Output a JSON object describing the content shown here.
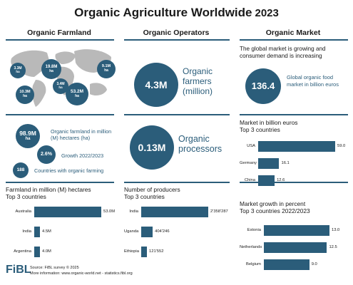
{
  "header": {
    "title": "Organic Agriculture Worldwide",
    "year": "2023"
  },
  "columns": {
    "farmland": "Organic Farmland",
    "operators": "Organic Operators",
    "market": "Organic Market"
  },
  "map": {
    "regions": [
      {
        "name": "north-america",
        "value": "19.8M",
        "unit": "ha"
      },
      {
        "name": "europe",
        "value": "9.1M",
        "unit": "ha"
      },
      {
        "name": "north-america-west",
        "value": "3.3M",
        "unit": "ha"
      },
      {
        "name": "latin-america",
        "value": "10.3M",
        "unit": "ha"
      },
      {
        "name": "africa",
        "value": "3.4M",
        "unit": "ha"
      },
      {
        "name": "oceania",
        "value": "53.2M",
        "unit": "ha"
      }
    ]
  },
  "farmland_stats": {
    "area_value": "98.9M",
    "area_unit": "ha",
    "area_label": "Organic farmland in million (M) hectares (ha)",
    "growth_value": "2.6%",
    "growth_label": "Growth 2022/2023",
    "countries_value": "188",
    "countries_label": "Countries with organic farming"
  },
  "operators": {
    "farmers_value": "4.3M",
    "farmers_label": "Organic farmers (million)",
    "processors_value": "0.13M",
    "processors_label": "Organic processors"
  },
  "market": {
    "intro": "The global market is growing and consumer demand is increasing",
    "food_value": "136.4",
    "food_label": "Global organic food market in billion euros"
  },
  "footer": {
    "logo": "FiBL",
    "source": "Source: FiBL survey © 2025",
    "more": "More information: www.organic-world.net - statistics.fibl.org"
  },
  "chart_data": [
    {
      "type": "bar",
      "title": "Farmland in million (M) hectares",
      "subtitle": "Top 3 countries",
      "categories": [
        "Australia",
        "India",
        "Argentina"
      ],
      "values": [
        53.0,
        4.5,
        4.0
      ],
      "value_labels": [
        "53.0M",
        "4.5M",
        "4.0M"
      ]
    },
    {
      "type": "bar",
      "title": "Number of producers",
      "subtitle": "Top 3 countries",
      "categories": [
        "India",
        "Uganda",
        "Ethiopia"
      ],
      "values": [
        2358287,
        404246,
        121552
      ],
      "value_labels": [
        "2'358'287",
        "404'246",
        "121'552"
      ]
    },
    {
      "type": "bar",
      "title": "Market in billion euros",
      "subtitle": "Top 3 countries",
      "categories": [
        "USA",
        "Germany",
        "China"
      ],
      "values": [
        59.0,
        16.1,
        12.6
      ],
      "value_labels": [
        "59.0",
        "16.1",
        "12.6"
      ]
    },
    {
      "type": "bar",
      "title": "Market growth in percent",
      "subtitle": "Top 3 countries 2022/2023",
      "categories": [
        "Estonia",
        "Netherlands",
        "Belgium"
      ],
      "values": [
        13.0,
        12.5,
        9.0
      ],
      "value_labels": [
        "13.0",
        "12.5",
        "9.0"
      ]
    }
  ]
}
